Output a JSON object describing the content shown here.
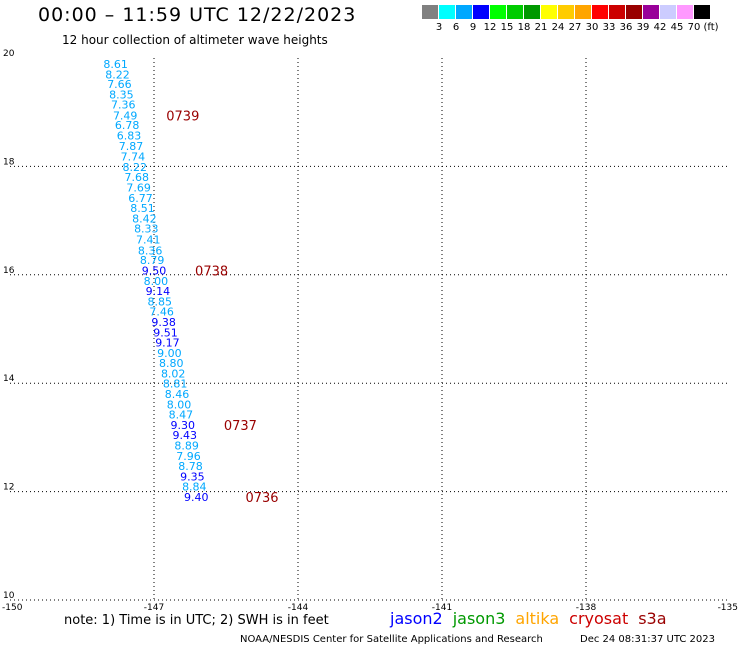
{
  "header": {
    "title": "00:00 – 11:59 UTC 12/22/2023",
    "subtitle": "12 hour collection of altimeter wave heights"
  },
  "colorbar": {
    "swatches": [
      "#808080",
      "#00ffff",
      "#00a8ff",
      "#0000ff",
      "#00ff00",
      "#00cc00",
      "#009900",
      "#ffff00",
      "#ffcc00",
      "#ffa500",
      "#ff0000",
      "#cc0000",
      "#990000",
      "#990099",
      "#ccccff",
      "#ff99ff",
      "#000000"
    ],
    "labels": [
      "3",
      "6",
      "9",
      "12",
      "15",
      "18",
      "21",
      "24",
      "27",
      "30",
      "33",
      "36",
      "39",
      "42",
      "45",
      "70",
      "(ft)"
    ]
  },
  "chart_data": {
    "type": "scatter",
    "title": "12 hour collection of altimeter wave heights",
    "xlim": [
      -150,
      -135
    ],
    "ylim": [
      10,
      20
    ],
    "x_ticks": [
      "-150",
      "-147",
      "-144",
      "-141",
      "-138",
      "-135"
    ],
    "y_ticks": [
      "10",
      "12",
      "14",
      "16",
      "18",
      "20"
    ],
    "grid": true,
    "units": "ft",
    "points": [
      {
        "lon": -147.8,
        "lat": 19.89,
        "swh": "8.61",
        "color": "#00a8ff"
      },
      {
        "lon": -147.76,
        "lat": 19.7,
        "swh": "8.22",
        "color": "#00a8ff"
      },
      {
        "lon": -147.72,
        "lat": 19.52,
        "swh": "7.66",
        "color": "#00a8ff"
      },
      {
        "lon": -147.68,
        "lat": 19.33,
        "swh": "8.35",
        "color": "#00a8ff"
      },
      {
        "lon": -147.64,
        "lat": 19.14,
        "swh": "7.36",
        "color": "#00a8ff"
      },
      {
        "lon": -147.6,
        "lat": 18.94,
        "swh": "7.49",
        "color": "#00a8ff"
      },
      {
        "lon": -147.56,
        "lat": 18.76,
        "swh": "6.78",
        "color": "#00a8ff"
      },
      {
        "lon": -147.52,
        "lat": 18.57,
        "swh": "6.83",
        "color": "#00a8ff"
      },
      {
        "lon": -147.48,
        "lat": 18.38,
        "swh": "7.87",
        "color": "#00a8ff"
      },
      {
        "lon": -147.44,
        "lat": 18.18,
        "swh": "7.74",
        "color": "#00a8ff"
      },
      {
        "lon": -147.4,
        "lat": 17.99,
        "swh": "8.22",
        "color": "#00a8ff"
      },
      {
        "lon": -147.36,
        "lat": 17.8,
        "swh": "7.68",
        "color": "#00a8ff"
      },
      {
        "lon": -147.32,
        "lat": 17.61,
        "swh": "7.69",
        "color": "#00a8ff"
      },
      {
        "lon": -147.28,
        "lat": 17.42,
        "swh": "6.77",
        "color": "#00a8ff"
      },
      {
        "lon": -147.24,
        "lat": 17.23,
        "swh": "8.51",
        "color": "#00a8ff"
      },
      {
        "lon": -147.2,
        "lat": 17.04,
        "swh": "8.42",
        "color": "#00a8ff"
      },
      {
        "lon": -147.16,
        "lat": 16.85,
        "swh": "8.33",
        "color": "#00a8ff"
      },
      {
        "lon": -147.12,
        "lat": 16.65,
        "swh": "7.41",
        "color": "#00a8ff"
      },
      {
        "lon": -147.08,
        "lat": 16.45,
        "swh": "8.36",
        "color": "#00a8ff"
      },
      {
        "lon": -147.04,
        "lat": 16.27,
        "swh": "8.79",
        "color": "#00a8ff"
      },
      {
        "lon": -147.0,
        "lat": 16.08,
        "swh": "9.50",
        "color": "#0000ff"
      },
      {
        "lon": -146.96,
        "lat": 15.89,
        "swh": "8.00",
        "color": "#00a8ff"
      },
      {
        "lon": -146.92,
        "lat": 15.7,
        "swh": "9.14",
        "color": "#0000ff"
      },
      {
        "lon": -146.88,
        "lat": 15.51,
        "swh": "8.85",
        "color": "#00a8ff"
      },
      {
        "lon": -146.84,
        "lat": 15.32,
        "swh": "7.46",
        "color": "#00a8ff"
      },
      {
        "lon": -146.8,
        "lat": 15.13,
        "swh": "9.38",
        "color": "#0000ff"
      },
      {
        "lon": -146.76,
        "lat": 14.94,
        "swh": "9.51",
        "color": "#0000ff"
      },
      {
        "lon": -146.72,
        "lat": 14.75,
        "swh": "9.17",
        "color": "#0000ff"
      },
      {
        "lon": -146.68,
        "lat": 14.56,
        "swh": "9.00",
        "color": "#00a8ff"
      },
      {
        "lon": -146.64,
        "lat": 14.37,
        "swh": "8.80",
        "color": "#00a8ff"
      },
      {
        "lon": -146.6,
        "lat": 14.18,
        "swh": "8.02",
        "color": "#00a8ff"
      },
      {
        "lon": -146.56,
        "lat": 13.99,
        "swh": "8.81",
        "color": "#00a8ff"
      },
      {
        "lon": -146.52,
        "lat": 13.8,
        "swh": "8.46",
        "color": "#00a8ff"
      },
      {
        "lon": -146.48,
        "lat": 13.61,
        "swh": "8.00",
        "color": "#00a8ff"
      },
      {
        "lon": -146.44,
        "lat": 13.42,
        "swh": "8.47",
        "color": "#00a8ff"
      },
      {
        "lon": -146.4,
        "lat": 13.23,
        "swh": "9.30",
        "color": "#0000ff"
      },
      {
        "lon": -146.36,
        "lat": 13.04,
        "swh": "9.43",
        "color": "#0000ff"
      },
      {
        "lon": -146.32,
        "lat": 12.85,
        "swh": "8.89",
        "color": "#00a8ff"
      },
      {
        "lon": -146.28,
        "lat": 12.66,
        "swh": "7.96",
        "color": "#00a8ff"
      },
      {
        "lon": -146.24,
        "lat": 12.47,
        "swh": "8.78",
        "color": "#00a8ff"
      },
      {
        "lon": -146.2,
        "lat": 12.28,
        "swh": "9.35",
        "color": "#0000ff"
      },
      {
        "lon": -146.16,
        "lat": 12.09,
        "swh": "8.84",
        "color": "#00a8ff"
      },
      {
        "lon": -146.12,
        "lat": 11.9,
        "swh": "9.40",
        "color": "#0000ff"
      }
    ],
    "time_labels": [
      {
        "text": "0739",
        "lon": -146.4,
        "lat": 18.94,
        "color": "#990000"
      },
      {
        "text": "0738",
        "lon": -145.8,
        "lat": 16.08,
        "color": "#990000"
      },
      {
        "text": "0737",
        "lon": -145.2,
        "lat": 13.23,
        "color": "#990000"
      },
      {
        "text": "0736",
        "lon": -144.75,
        "lat": 11.9,
        "color": "#990000"
      }
    ]
  },
  "footer": {
    "note": "note:  1) Time is in UTC;  2) SWH is in feet",
    "satellites": [
      {
        "name": "jason2",
        "color": "#0000ff"
      },
      {
        "name": "jason3",
        "color": "#009900"
      },
      {
        "name": "altika",
        "color": "#ffa500"
      },
      {
        "name": "cryosat",
        "color": "#cc0000"
      },
      {
        "name": "s3a",
        "color": "#990000"
      }
    ],
    "credit": "NOAA/NESDIS Center for Satellite Applications and Research",
    "timestamp": "Dec 24 08:31:37 UTC 2023"
  }
}
